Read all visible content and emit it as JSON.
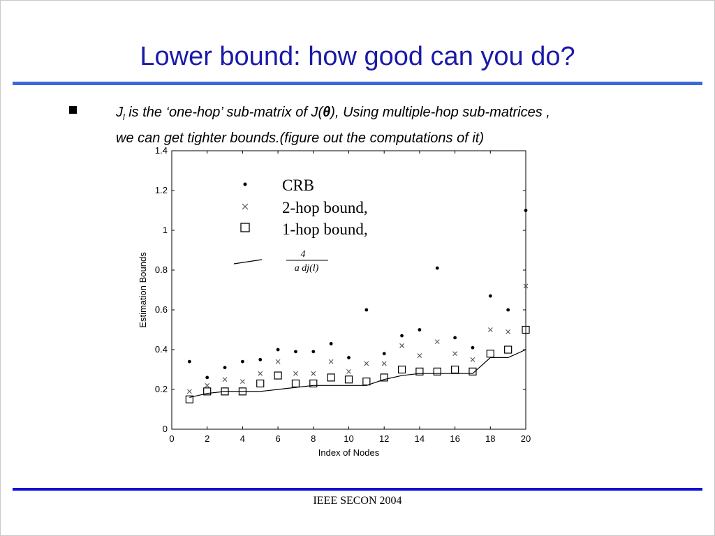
{
  "slide": {
    "title": "Lower bound: how good can you do?",
    "bullet": {
      "j_main": "J",
      "j_sub": "l",
      "text_a": " is the ‘one-hop’ sub-matrix of  J(",
      "theta": "θ",
      "text_b": "), Using multiple-hop sub-matrices ,",
      "line2": "we can get tighter bounds.(figure out the computations of it)"
    },
    "footer": "IEEE SECON 2004",
    "colors": {
      "title": "#1a1aa8",
      "top_rule": "#3a6ad8",
      "bottom_rule": "#1010d8"
    }
  },
  "chart_data": {
    "type": "scatter",
    "xlabel": "Index of Nodes",
    "ylabel": "Estimation Bounds",
    "xlim": [
      0,
      20
    ],
    "ylim": [
      0,
      1.4
    ],
    "xticks": [
      0,
      2,
      4,
      6,
      8,
      10,
      12,
      14,
      16,
      18,
      20
    ],
    "yticks": [
      0,
      0.2,
      0.4,
      0.6,
      0.8,
      1,
      1.2,
      1.4
    ],
    "ytick_labels": [
      "0",
      "0.2",
      "0.4",
      "0.6",
      "0.8",
      "1",
      "1.2",
      "1.4"
    ],
    "x": [
      1,
      2,
      3,
      4,
      5,
      6,
      7,
      8,
      9,
      10,
      11,
      12,
      13,
      14,
      15,
      16,
      17,
      18,
      19,
      20
    ],
    "grid": false,
    "legend_position": "top-left",
    "series": [
      {
        "name": "CRB",
        "marker": "dot",
        "values": [
          0.34,
          0.26,
          0.31,
          0.34,
          0.35,
          0.4,
          0.39,
          0.39,
          0.43,
          0.36,
          0.6,
          0.38,
          0.47,
          0.5,
          0.81,
          0.46,
          0.41,
          0.67,
          0.6,
          1.1
        ]
      },
      {
        "name": "2-hop  bound",
        "marker": "x",
        "values": [
          0.19,
          0.22,
          0.25,
          0.24,
          0.28,
          0.34,
          0.28,
          0.28,
          0.34,
          0.29,
          0.33,
          0.33,
          0.42,
          0.37,
          0.44,
          0.38,
          0.35,
          0.5,
          0.49,
          0.72
        ]
      },
      {
        "name": "1-hop  bound",
        "marker": "square",
        "values": [
          0.15,
          0.19,
          0.19,
          0.19,
          0.23,
          0.27,
          0.23,
          0.23,
          0.26,
          0.25,
          0.24,
          0.26,
          0.3,
          0.29,
          0.29,
          0.3,
          0.29,
          0.38,
          0.4,
          0.5
        ]
      },
      {
        "name": "4 / adj(l)",
        "marker": "line",
        "x": [
          1,
          2,
          3,
          4,
          5,
          6,
          7,
          8,
          9,
          10,
          11,
          12,
          13,
          14,
          15,
          16,
          17,
          18,
          19,
          20
        ],
        "values": [
          0.16,
          0.18,
          0.19,
          0.19,
          0.19,
          0.2,
          0.21,
          0.22,
          0.22,
          0.22,
          0.22,
          0.25,
          0.27,
          0.28,
          0.28,
          0.28,
          0.28,
          0.36,
          0.36,
          0.4
        ]
      }
    ],
    "legend": {
      "crb": "CRB",
      "two_hop": "2-hop  bound,",
      "one_hop": "1-hop  bound,",
      "frac_num": "4",
      "frac_den": "a dj(l)"
    }
  }
}
